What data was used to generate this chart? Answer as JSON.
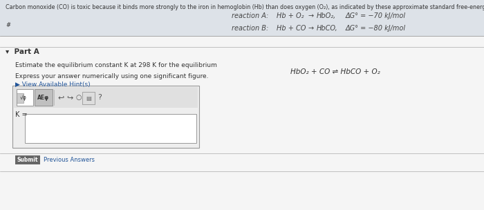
{
  "bg_color": "#c8cdd4",
  "top_panel_bg": "#dde2e8",
  "bottom_panel_bg": "#dde2e8",
  "white_bg": "#f5f5f5",
  "header_text": "Carbon monoxide (CO) is toxic because it binds more strongly to the iron in hemoglobin (Hb) than does oxygen (O₂), as indicated by these approximate standard free-energy changes in blood:",
  "reaction_a_label": "reaction A:",
  "reaction_a_eq": "Hb + O₂  →  HbO₂,",
  "reaction_a_dg": "ΔG° = −70 kJ/mol",
  "reaction_b_label": "reaction B:",
  "reaction_b_eq": "Hb + CO  →  HbCO,",
  "reaction_b_dg": "ΔG° = −80 kJ/mol",
  "hash": "#",
  "part_a_label": "▾  Part A",
  "question_text": "Estimate the equilibrium constant K at 298 K for the equilibrium",
  "express_text": "Express your answer numerically using one significant figure.",
  "hint_text": "▶ View Available Hint(s)",
  "equilibrium_eq": "HbO₂ + CO ⇌ HbCO + O₂",
  "k_label": "K =",
  "submit_label": "Submit",
  "previous_label": "Previous Answers",
  "font_size_header": 5.8,
  "font_size_body": 6.5,
  "font_size_reaction": 7.0,
  "font_size_eq": 7.5,
  "text_color": "#333333",
  "reaction_color": "#444444",
  "hint_color": "#225599",
  "submit_bg": "#666666",
  "submit_text_color": "#ffffff",
  "input_bg": "#ffffff",
  "toolbar_bg": "#e0e0e0",
  "border_color": "#999999",
  "icon1_bg": "#ffffff",
  "icon2_bg": "#c0c0c0",
  "part_a_line_color": "#aaaaaa"
}
